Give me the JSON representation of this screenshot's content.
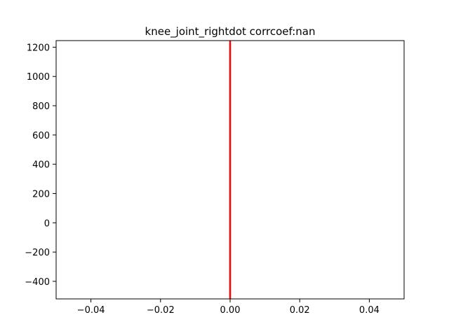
{
  "chart_data": {
    "type": "line",
    "title": "knee_joint_rightdot corrcoef:nan",
    "xlabel": "",
    "ylabel": "",
    "xlim": [
      -0.05,
      0.05
    ],
    "ylim": [
      -520,
      1245
    ],
    "x_ticks": [
      -0.04,
      -0.02,
      0.0,
      0.02,
      0.04
    ],
    "x_tick_labels": [
      "−0.04",
      "−0.02",
      "0.00",
      "0.02",
      "0.04"
    ],
    "y_ticks": [
      -400,
      -200,
      0,
      200,
      400,
      600,
      800,
      1000,
      1200
    ],
    "y_tick_labels": [
      "−400",
      "−200",
      "0",
      "200",
      "400",
      "600",
      "800",
      "1000",
      "1200"
    ],
    "grid": false,
    "series": [
      {
        "x": [
          0,
          0
        ],
        "y": [
          -520,
          1245
        ],
        "color": "#ff0000"
      }
    ]
  }
}
